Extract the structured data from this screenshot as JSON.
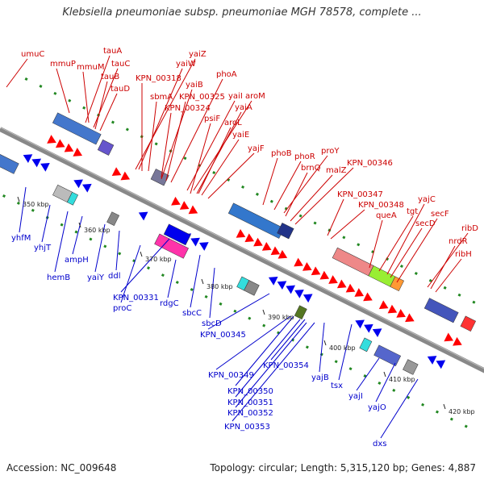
{
  "title": "Klebsiella pneumoniae subsp. pneumoniae MGH 78578, complete ...",
  "footer": {
    "accession": "Accession: NC_009648",
    "info": "Topology: circular; Length: 5,315,120 bp; Genes: 4,887"
  },
  "colors": {
    "forward": "#ff0000",
    "reverse": "#0000ee",
    "forward_label": "#cc0000",
    "reverse_label": "#0000cc",
    "backbone": "#888888",
    "dots": "#228822"
  },
  "ticks": [
    "350 kbp",
    "360 kbp",
    "370 kbp",
    "380 kbp",
    "390 kbp",
    "400 kbp",
    "410 kbp",
    "420 kbp"
  ],
  "top_labels": [
    "umuC",
    "mmuP",
    "mmuM",
    "tauA",
    "tauC",
    "tauB",
    "tauD",
    "yaiZ",
    "yaiW",
    "KPN_00318",
    "sbmA",
    "yaiB",
    "phoA",
    "KPN_00325",
    "KPN_00324",
    "yaiI",
    "aroM",
    "psiF",
    "yaiA",
    "aroL",
    "yaiE",
    "yajF",
    "phoB",
    "phoR",
    "proY",
    "brnQ",
    "malZ",
    "KPN_00346",
    "KPN_00347",
    "KPN_00348",
    "queA",
    "tgt",
    "yajC",
    "secD",
    "secF",
    "ribD",
    "nrdR",
    "ribH"
  ],
  "bottom_labels": [
    "yhfM",
    "yhjT",
    "hemB",
    "ampH",
    "yaiY",
    "ddl",
    "proC",
    "KPN_00331",
    "rdgC",
    "sbcC",
    "sbcD",
    "KPN_00345",
    "KPN_00349",
    "KPN_00354",
    "KPN_00350",
    "KPN_00351",
    "KPN_00352",
    "KPN_00353",
    "yajB",
    "tsx",
    "yajI",
    "yajO",
    "dxs"
  ]
}
